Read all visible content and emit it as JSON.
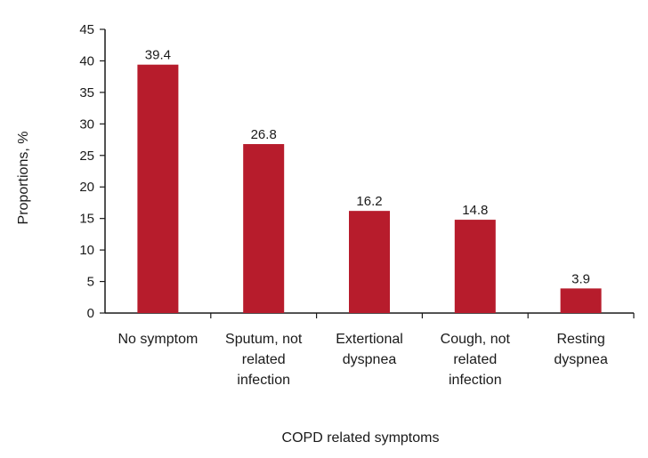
{
  "chart_data": {
    "type": "bar",
    "categories": [
      [
        "No symptom"
      ],
      [
        "Sputum, not",
        "related",
        "infection"
      ],
      [
        "Extertional",
        "dyspnea"
      ],
      [
        "Cough, not",
        "related",
        "infection"
      ],
      [
        "Resting",
        "dyspnea"
      ]
    ],
    "values": [
      39.4,
      26.8,
      16.2,
      14.8,
      3.9
    ],
    "data_labels": [
      "39.4",
      "26.8",
      "16.2",
      "14.8",
      "3.9"
    ],
    "title": "",
    "xlabel": "COPD related symptoms",
    "ylabel": "Proportions, %",
    "ylim": [
      0,
      45
    ],
    "yticks": [
      "0",
      "5",
      "10",
      "15",
      "20",
      "25",
      "30",
      "35",
      "40",
      "45"
    ],
    "grid": false,
    "legend": "none",
    "bar_color": "#B71C2C",
    "axis_color": "#1a1a1a"
  }
}
